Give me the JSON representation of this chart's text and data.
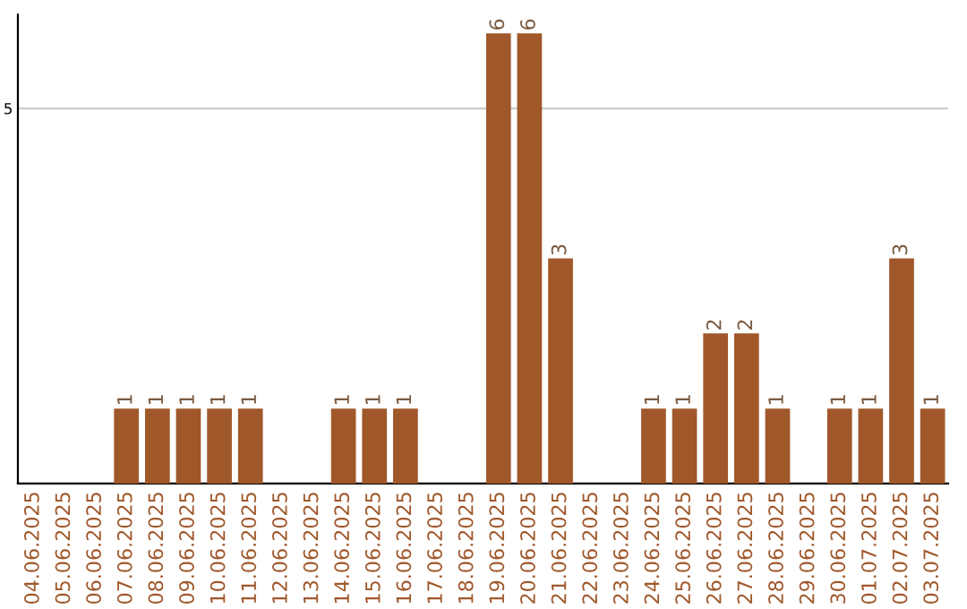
{
  "chart_data": {
    "type": "bar",
    "categories": [
      "04.06.2025",
      "05.06.2025",
      "06.06.2025",
      "07.06.2025",
      "08.06.2025",
      "09.06.2025",
      "10.06.2025",
      "11.06.2025",
      "12.06.2025",
      "13.06.2025",
      "14.06.2025",
      "15.06.2025",
      "16.06.2025",
      "17.06.2025",
      "18.06.2025",
      "19.06.2025",
      "20.06.2025",
      "21.06.2025",
      "22.06.2025",
      "23.06.2025",
      "24.06.2025",
      "25.06.2025",
      "26.06.2025",
      "27.06.2025",
      "28.06.2025",
      "29.06.2025",
      "30.06.2025",
      "01.07.2025",
      "02.07.2025",
      "03.07.2025"
    ],
    "values": [
      0,
      0,
      0,
      1,
      1,
      1,
      1,
      1,
      0,
      0,
      1,
      1,
      1,
      0,
      0,
      6,
      6,
      3,
      0,
      0,
      1,
      1,
      2,
      2,
      1,
      0,
      1,
      1,
      3,
      1
    ],
    "value_labels": [
      null,
      null,
      null,
      "1",
      "1",
      "1",
      "1",
      "1",
      null,
      null,
      "1",
      "1",
      "1",
      null,
      null,
      "6",
      "6",
      "3",
      null,
      null,
      "1",
      "1",
      "2",
      "2",
      "1",
      null,
      "1",
      "1",
      "3",
      "1"
    ],
    "color": "#a0582b",
    "ylim": [
      0,
      6.25
    ],
    "yticks": [
      5
    ],
    "grid": "y"
  }
}
